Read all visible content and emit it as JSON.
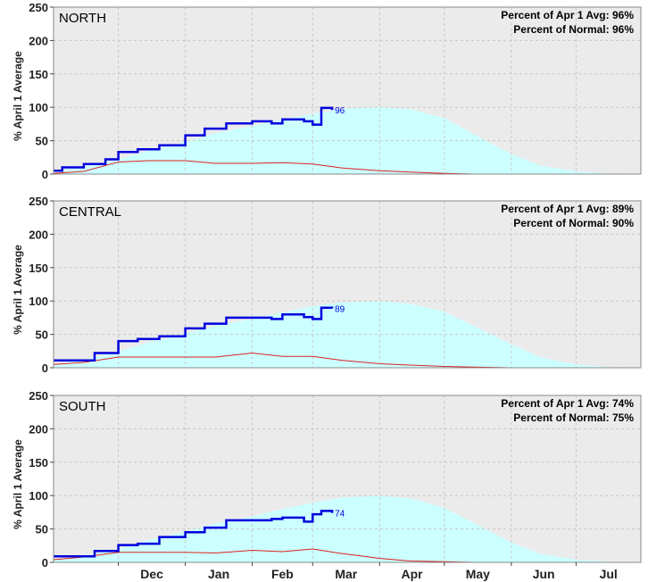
{
  "colors": {
    "plot_background": "#ebebeb",
    "normal_fill": "#ccffff",
    "current_line": "#0000dd",
    "low_line": "#dd2222",
    "grid": "#c8c8c8"
  },
  "x_axis": {
    "month_labels": [
      "Dec",
      "Jan",
      "Feb",
      "Mar",
      "Apr",
      "May",
      "Jun",
      "Jul"
    ]
  },
  "chart_data": [
    {
      "type": "area",
      "title": "NORTH",
      "ylabel": "% April 1 Average",
      "ylim": [
        0,
        250
      ],
      "yticks": [
        0,
        50,
        100,
        150,
        200,
        250
      ],
      "xlim": [
        "Nov 1",
        "Jul 31"
      ],
      "grid": true,
      "stats": [
        "Percent of Apr 1 Avg: 96%",
        "Percent of Normal: 96%"
      ],
      "end_label": "96",
      "series": [
        {
          "role": "normal",
          "x": [
            "Nov 1",
            "Nov 15",
            "Dec 1",
            "Dec 15",
            "Jan 1",
            "Jan 15",
            "Feb 1",
            "Feb 15",
            "Mar 1",
            "Mar 15",
            "Apr 1",
            "Apr 15",
            "May 1",
            "May 15",
            "Jun 1",
            "Jun 15",
            "Jul 1",
            "Jul 15",
            "Jul 31"
          ],
          "values": [
            5,
            11,
            22,
            35,
            48,
            61,
            72,
            82,
            90,
            98,
            100,
            97,
            84,
            59,
            30,
            12,
            4,
            1,
            0
          ]
        },
        {
          "role": "current",
          "x": [
            "Nov 1",
            "Nov 5",
            "Nov 15",
            "Nov 25",
            "Dec 1",
            "Dec 10",
            "Dec 20",
            "Jan 1",
            "Jan 10",
            "Jan 20",
            "Feb 1",
            "Feb 10",
            "Feb 15",
            "Feb 25",
            "Mar 1",
            "Mar 5",
            "Mar 10"
          ],
          "values": [
            5,
            10,
            15,
            22,
            33,
            37,
            43,
            58,
            68,
            76,
            79,
            76,
            82,
            79,
            74,
            99,
            96
          ]
        },
        {
          "role": "low",
          "x": [
            "Nov 1",
            "Nov 15",
            "Dec 1",
            "Dec 15",
            "Jan 1",
            "Jan 15",
            "Feb 1",
            "Feb 15",
            "Mar 1",
            "Mar 15",
            "Apr 1",
            "Apr 15",
            "May 1",
            "May 15",
            "Jun 1",
            "Jul 31"
          ],
          "values": [
            1,
            4,
            18,
            20,
            20,
            16,
            16,
            17,
            15,
            9,
            5,
            3,
            1,
            0,
            0,
            0
          ]
        }
      ]
    },
    {
      "type": "area",
      "title": "CENTRAL",
      "ylabel": "% April 1 Average",
      "ylim": [
        0,
        250
      ],
      "yticks": [
        0,
        50,
        100,
        150,
        200,
        250
      ],
      "xlim": [
        "Nov 1",
        "Jul 31"
      ],
      "grid": true,
      "stats": [
        "Percent of Apr 1 Avg: 89%",
        "Percent of Normal: 90%"
      ],
      "end_label": "89",
      "series": [
        {
          "role": "normal",
          "x": [
            "Nov 1",
            "Nov 15",
            "Dec 1",
            "Dec 15",
            "Jan 1",
            "Jan 15",
            "Feb 1",
            "Feb 15",
            "Mar 1",
            "Mar 15",
            "Apr 1",
            "Apr 15",
            "May 1",
            "May 15",
            "Jun 1",
            "Jun 15",
            "Jul 1",
            "Jul 15",
            "Jul 31"
          ],
          "values": [
            5,
            12,
            24,
            38,
            51,
            63,
            73,
            83,
            92,
            98,
            100,
            96,
            84,
            62,
            35,
            15,
            5,
            1,
            0
          ]
        },
        {
          "role": "current",
          "x": [
            "Nov 1",
            "Nov 10",
            "Nov 20",
            "Dec 1",
            "Dec 10",
            "Dec 20",
            "Jan 1",
            "Jan 10",
            "Jan 20",
            "Feb 1",
            "Feb 10",
            "Feb 15",
            "Feb 25",
            "Mar 1",
            "Mar 5",
            "Mar 10"
          ],
          "values": [
            11,
            11,
            22,
            40,
            43,
            47,
            59,
            66,
            75,
            75,
            73,
            80,
            76,
            73,
            90,
            89
          ]
        },
        {
          "role": "low",
          "x": [
            "Nov 1",
            "Nov 15",
            "Dec 1",
            "Dec 15",
            "Jan 1",
            "Jan 15",
            "Feb 1",
            "Feb 15",
            "Mar 1",
            "Mar 15",
            "Apr 1",
            "Apr 15",
            "May 1",
            "May 15",
            "Jun 1",
            "Jul 31"
          ],
          "values": [
            5,
            8,
            16,
            16,
            16,
            16,
            22,
            17,
            17,
            11,
            6,
            4,
            2,
            1,
            0,
            0
          ]
        }
      ]
    },
    {
      "type": "area",
      "title": "SOUTH",
      "ylabel": "% April 1 Average",
      "ylim": [
        0,
        250
      ],
      "yticks": [
        0,
        50,
        100,
        150,
        200,
        250
      ],
      "xlim": [
        "Nov 1",
        "Jul 31"
      ],
      "grid": true,
      "stats": [
        "Percent of Apr 1 Avg: 74%",
        "Percent of Normal: 75%"
      ],
      "end_label": "74",
      "series": [
        {
          "role": "normal",
          "x": [
            "Nov 1",
            "Nov 15",
            "Dec 1",
            "Dec 15",
            "Jan 1",
            "Jan 15",
            "Feb 1",
            "Feb 15",
            "Mar 1",
            "Mar 15",
            "Apr 1",
            "Apr 15",
            "May 1",
            "May 15",
            "Jun 1",
            "Jun 15",
            "Jul 1",
            "Jul 15",
            "Jul 31"
          ],
          "values": [
            4,
            10,
            20,
            33,
            46,
            58,
            69,
            80,
            89,
            97,
            100,
            96,
            82,
            58,
            30,
            12,
            4,
            1,
            0
          ]
        },
        {
          "role": "current",
          "x": [
            "Nov 1",
            "Nov 10",
            "Nov 20",
            "Dec 1",
            "Dec 10",
            "Dec 20",
            "Jan 1",
            "Jan 10",
            "Jan 20",
            "Feb 1",
            "Feb 10",
            "Feb 15",
            "Feb 25",
            "Mar 1",
            "Mar 5",
            "Mar 10"
          ],
          "values": [
            9,
            9,
            17,
            26,
            28,
            38,
            45,
            52,
            63,
            63,
            65,
            67,
            61,
            72,
            77,
            74
          ]
        },
        {
          "role": "low",
          "x": [
            "Nov 1",
            "Nov 15",
            "Dec 1",
            "Dec 15",
            "Jan 1",
            "Jan 15",
            "Feb 1",
            "Feb 15",
            "Mar 1",
            "Mar 15",
            "Apr 1",
            "Apr 15",
            "May 1",
            "May 15",
            "Jun 1",
            "Jul 31"
          ],
          "values": [
            4,
            8,
            15,
            15,
            15,
            14,
            18,
            16,
            20,
            13,
            6,
            2,
            1,
            0,
            0,
            0
          ]
        }
      ]
    }
  ]
}
